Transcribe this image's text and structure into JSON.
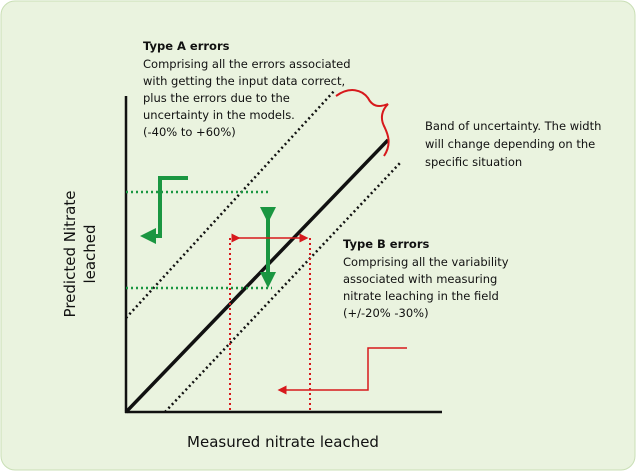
{
  "type_a": {
    "title": "Type A errors",
    "lines": [
      "Comprising all the errors associated",
      "with getting the input data correct,",
      "plus the errors due to the",
      "uncertainty in the models.",
      "(-40% to +60%)"
    ]
  },
  "band": {
    "lines": [
      "Band of uncertainty. The width",
      "will change depending on the",
      "specific situation"
    ]
  },
  "type_b": {
    "title": "Type B errors",
    "lines": [
      "Comprising all the variability",
      "associated with measuring",
      "nitrate leaching in the field",
      "(+/-20% -30%)"
    ]
  },
  "y_axis": {
    "lines": [
      "Predicted Nitrate",
      "leached"
    ]
  },
  "x_axis": {
    "label": "Measured nitrate leached"
  }
}
